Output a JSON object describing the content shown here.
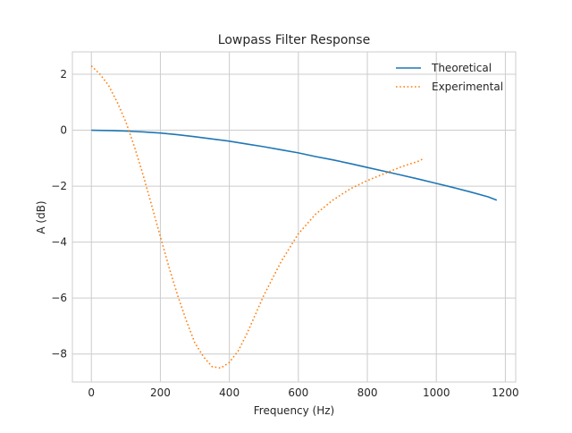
{
  "chart_data": {
    "type": "line",
    "title": "Lowpass Filter Response",
    "xlabel": "Frequency (Hz)",
    "ylabel": "A (dB)",
    "xlim": [
      -55,
      1230
    ],
    "ylim": [
      -9.0,
      2.8
    ],
    "xticks": [
      0,
      200,
      400,
      600,
      800,
      1000,
      1200
    ],
    "yticks": [
      2,
      0,
      -2,
      -4,
      -6,
      -8
    ],
    "grid": true,
    "legend_position": "top-right",
    "series": [
      {
        "name": "Theoretical",
        "style": "solid",
        "color": "#1f77b4",
        "x": [
          0,
          50,
          100,
          150,
          200,
          250,
          300,
          350,
          400,
          450,
          500,
          550,
          600,
          650,
          700,
          750,
          800,
          850,
          900,
          950,
          1000,
          1050,
          1100,
          1150,
          1175
        ],
        "y": [
          0.0,
          -0.01,
          -0.03,
          -0.06,
          -0.1,
          -0.16,
          -0.23,
          -0.31,
          -0.39,
          -0.49,
          -0.59,
          -0.7,
          -0.81,
          -0.94,
          -1.06,
          -1.19,
          -1.33,
          -1.47,
          -1.61,
          -1.75,
          -1.9,
          -2.05,
          -2.21,
          -2.38,
          -2.5
        ]
      },
      {
        "name": "Experimental",
        "style": "dotted",
        "color": "#ff7f0e",
        "x": [
          0,
          25,
          50,
          75,
          100,
          125,
          150,
          175,
          200,
          225,
          250,
          275,
          300,
          325,
          350,
          375,
          400,
          425,
          450,
          475,
          500,
          550,
          600,
          650,
          700,
          750,
          800,
          850,
          900,
          950,
          965
        ],
        "y": [
          2.3,
          2.0,
          1.6,
          1.0,
          0.3,
          -0.6,
          -1.6,
          -2.7,
          -3.8,
          -4.9,
          -5.9,
          -6.8,
          -7.6,
          -8.1,
          -8.45,
          -8.5,
          -8.3,
          -7.9,
          -7.3,
          -6.6,
          -5.9,
          -4.7,
          -3.7,
          -3.0,
          -2.5,
          -2.1,
          -1.8,
          -1.55,
          -1.3,
          -1.1,
          -1.0
        ]
      }
    ]
  }
}
